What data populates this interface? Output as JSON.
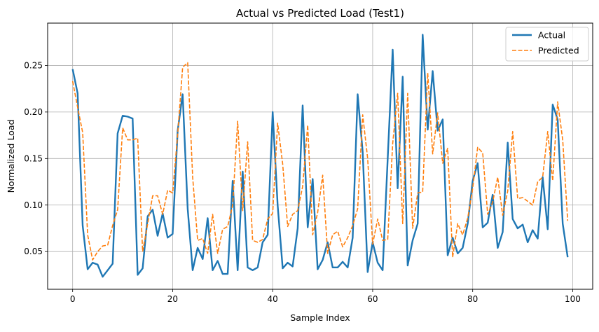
{
  "chart_data": {
    "type": "line",
    "title": "Actual vs Predicted Load (Test1)",
    "xlabel": "Sample Index",
    "ylabel": "Normalized Load",
    "xlim": [
      -5,
      104
    ],
    "ylim": [
      0.0095,
      0.2955
    ],
    "x_ticks": [
      0,
      20,
      40,
      60,
      80,
      100
    ],
    "y_ticks": [
      0.05,
      0.1,
      0.15,
      0.2,
      0.25
    ],
    "x_tick_labels": [
      "0",
      "20",
      "40",
      "60",
      "80",
      "100"
    ],
    "y_tick_labels": [
      "0.05",
      "0.10",
      "0.15",
      "0.20",
      "0.25"
    ],
    "grid": true,
    "legend_position": "upper right",
    "x": [
      0,
      1,
      2,
      3,
      4,
      5,
      6,
      7,
      8,
      9,
      10,
      11,
      12,
      13,
      14,
      15,
      16,
      17,
      18,
      19,
      20,
      21,
      22,
      23,
      24,
      25,
      26,
      27,
      28,
      29,
      30,
      31,
      32,
      33,
      34,
      35,
      36,
      37,
      38,
      39,
      40,
      41,
      42,
      43,
      44,
      45,
      46,
      47,
      48,
      49,
      50,
      51,
      52,
      53,
      54,
      55,
      56,
      57,
      58,
      59,
      60,
      61,
      62,
      63,
      64,
      65,
      66,
      67,
      68,
      69,
      70,
      71,
      72,
      73,
      74,
      75,
      76,
      77,
      78,
      79,
      80,
      81,
      82,
      83,
      84,
      85,
      86,
      87,
      88,
      89,
      90,
      91,
      92,
      93,
      94,
      95,
      96,
      97,
      98,
      99
    ],
    "series": [
      {
        "name": "Actual",
        "color": "#1f77b4",
        "style": "solid",
        "values": [
          0.246,
          0.22,
          0.078,
          0.031,
          0.038,
          0.036,
          0.023,
          0.03,
          0.037,
          0.177,
          0.196,
          0.195,
          0.193,
          0.025,
          0.032,
          0.088,
          0.095,
          0.067,
          0.091,
          0.065,
          0.069,
          0.18,
          0.219,
          0.096,
          0.03,
          0.054,
          0.042,
          0.086,
          0.03,
          0.04,
          0.026,
          0.026,
          0.126,
          0.03,
          0.136,
          0.033,
          0.03,
          0.033,
          0.06,
          0.068,
          0.2,
          0.1,
          0.032,
          0.038,
          0.034,
          0.075,
          0.207,
          0.076,
          0.128,
          0.031,
          0.041,
          0.06,
          0.033,
          0.033,
          0.039,
          0.033,
          0.065,
          0.219,
          0.157,
          0.028,
          0.06,
          0.038,
          0.03,
          0.15,
          0.267,
          0.118,
          0.238,
          0.035,
          0.062,
          0.08,
          0.283,
          0.181,
          0.244,
          0.18,
          0.192,
          0.046,
          0.065,
          0.048,
          0.054,
          0.08,
          0.126,
          0.145,
          0.076,
          0.081,
          0.111,
          0.054,
          0.071,
          0.167,
          0.085,
          0.075,
          0.079,
          0.06,
          0.073,
          0.064,
          0.13,
          0.074,
          0.208,
          0.192,
          0.08,
          0.044
        ]
      },
      {
        "name": "Predicted",
        "color": "#ff7f0e",
        "style": "dashed",
        "values": [
          0.233,
          0.205,
          0.178,
          0.068,
          0.041,
          0.05,
          0.056,
          0.057,
          0.078,
          0.095,
          0.183,
          0.17,
          0.17,
          0.172,
          0.05,
          0.08,
          0.11,
          0.11,
          0.09,
          0.116,
          0.113,
          0.176,
          0.248,
          0.253,
          0.13,
          0.062,
          0.064,
          0.048,
          0.09,
          0.048,
          0.074,
          0.077,
          0.1,
          0.19,
          0.094,
          0.168,
          0.062,
          0.06,
          0.063,
          0.085,
          0.091,
          0.188,
          0.144,
          0.077,
          0.09,
          0.094,
          0.12,
          0.186,
          0.068,
          0.092,
          0.132,
          0.048,
          0.068,
          0.072,
          0.055,
          0.065,
          0.078,
          0.096,
          0.197,
          0.15,
          0.058,
          0.085,
          0.062,
          0.063,
          0.166,
          0.22,
          0.08,
          0.22,
          0.075,
          0.113,
          0.114,
          0.242,
          0.155,
          0.199,
          0.145,
          0.161,
          0.044,
          0.08,
          0.068,
          0.086,
          0.118,
          0.162,
          0.156,
          0.09,
          0.103,
          0.13,
          0.089,
          0.115,
          0.179,
          0.107,
          0.108,
          0.104,
          0.1,
          0.125,
          0.13,
          0.179,
          0.126,
          0.211,
          0.17,
          0.083
        ]
      }
    ]
  }
}
